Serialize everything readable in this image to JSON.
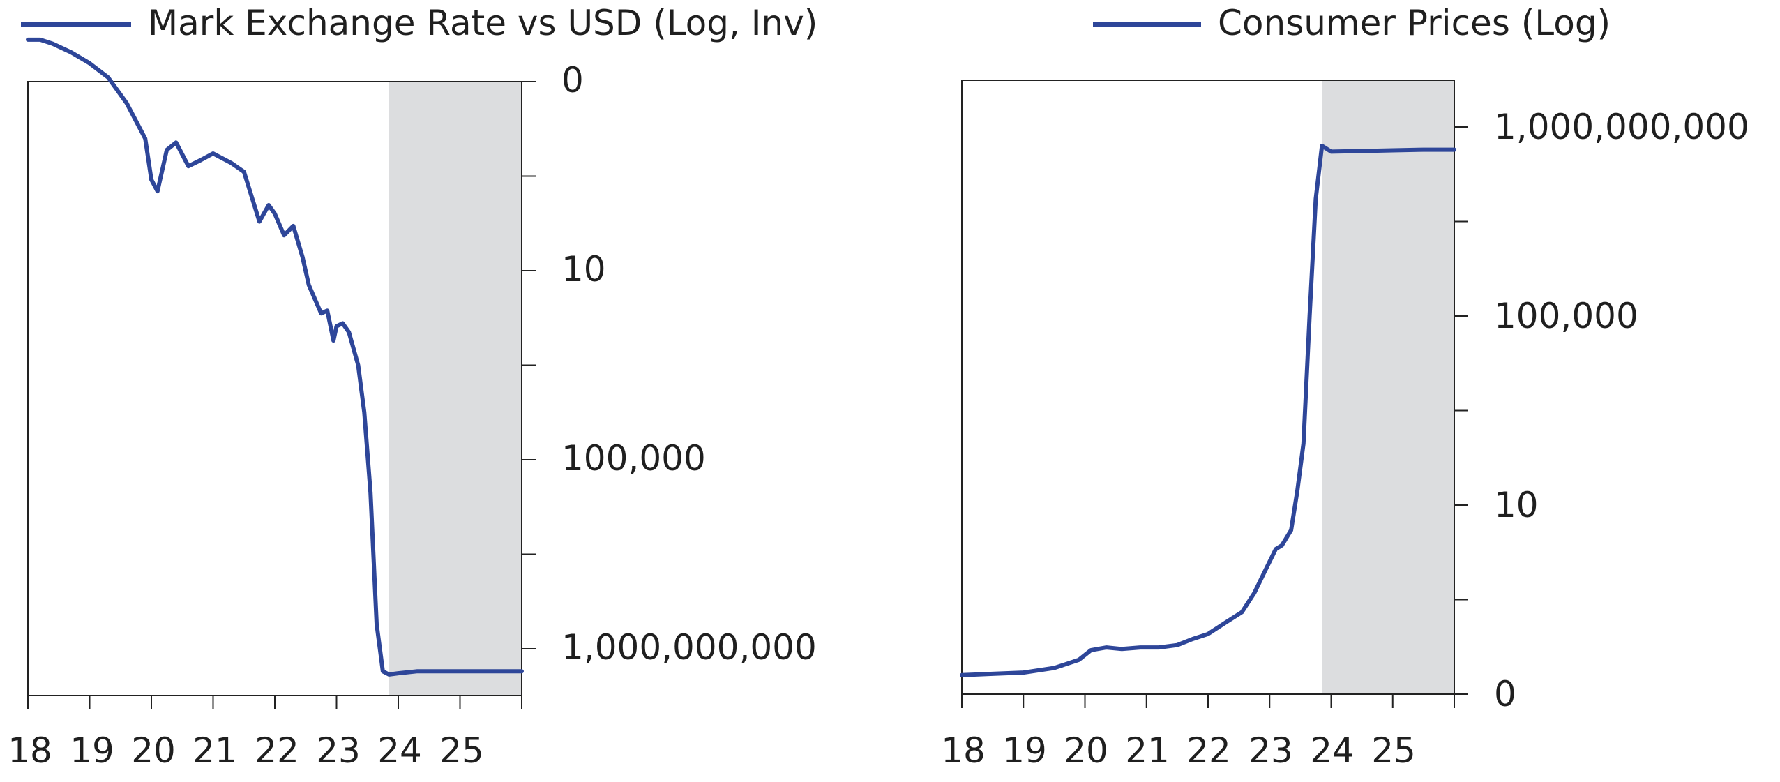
{
  "colors": {
    "line": "#2E4699",
    "shade": "#DCDDDF",
    "axis": "#222222",
    "text": "#1f1f1f"
  },
  "chart_data": [
    {
      "type": "line",
      "title": "",
      "legend": "Mark Exchange Rate vs USD (Log, Inv)",
      "legend_position": "top",
      "y_scale": "log-inverted",
      "y_axis_side": "right",
      "ytick_labels": [
        "0",
        "10",
        "100,000",
        "1,000,000,000"
      ],
      "ytick_values": [
        1,
        10,
        100000,
        1000000000
      ],
      "xtick_labels": [
        "18",
        "19",
        "20",
        "21",
        "22",
        "23",
        "24",
        "25"
      ],
      "xlim": [
        1918.0,
        1926.0
      ],
      "ylim": [
        0.5,
        30000000000
      ],
      "shaded_region": [
        1923.85,
        1926.0
      ],
      "grid": false,
      "series": [
        {
          "values": [
            [
              1918.0,
              0.6
            ],
            [
              1918.2,
              0.6
            ],
            [
              1918.4,
              0.63
            ],
            [
              1918.7,
              0.7
            ],
            [
              1919.0,
              0.8
            ],
            [
              1919.3,
              0.95
            ],
            [
              1919.6,
              1.3
            ],
            [
              1919.9,
              2.0
            ],
            [
              1920.0,
              3.3
            ],
            [
              1920.1,
              3.8
            ],
            [
              1920.25,
              2.3
            ],
            [
              1920.4,
              2.1
            ],
            [
              1920.6,
              2.8
            ],
            [
              1920.8,
              2.6
            ],
            [
              1921.0,
              2.4
            ],
            [
              1921.3,
              2.7
            ],
            [
              1921.5,
              3.0
            ],
            [
              1921.75,
              5.5
            ],
            [
              1921.9,
              4.5
            ],
            [
              1922.0,
              5.0
            ],
            [
              1922.15,
              6.5
            ],
            [
              1922.3,
              5.8
            ],
            [
              1922.45,
              8.5
            ],
            [
              1922.55,
              20
            ],
            [
              1922.65,
              40
            ],
            [
              1922.75,
              80
            ],
            [
              1922.85,
              70
            ],
            [
              1922.95,
              300
            ],
            [
              1923.0,
              150
            ],
            [
              1923.1,
              130
            ],
            [
              1923.2,
              200
            ],
            [
              1923.35,
              1000
            ],
            [
              1923.45,
              10000
            ],
            [
              1923.55,
              500000
            ],
            [
              1923.65,
              300000000
            ],
            [
              1923.75,
              3000000000
            ],
            [
              1923.85,
              3500000000
            ],
            [
              1924.0,
              3300000000
            ],
            [
              1924.3,
              3000000000
            ],
            [
              1925.0,
              3000000000
            ],
            [
              1926.0,
              3000000000
            ]
          ]
        }
      ]
    },
    {
      "type": "line",
      "title": "",
      "legend": "Consumer Prices (Log)",
      "legend_position": "top",
      "y_scale": "log",
      "y_axis_side": "right",
      "ytick_labels": [
        "0",
        "10",
        "100,000",
        "1,000,000,000"
      ],
      "ytick_values": [
        0.01,
        10,
        100000,
        1000000000
      ],
      "xtick_labels": [
        "18",
        "19",
        "20",
        "21",
        "22",
        "23",
        "24",
        "25"
      ],
      "xlim": [
        1918.0,
        1926.0
      ],
      "ylim": [
        0.01,
        30000000000
      ],
      "shaded_region": [
        1923.85,
        1926.0
      ],
      "grid": false,
      "series": [
        {
          "values": [
            [
              1918.0,
              0.02
            ],
            [
              1918.5,
              0.021
            ],
            [
              1919.0,
              0.022
            ],
            [
              1919.5,
              0.026
            ],
            [
              1919.9,
              0.035
            ],
            [
              1920.1,
              0.05
            ],
            [
              1920.35,
              0.055
            ],
            [
              1920.6,
              0.052
            ],
            [
              1920.9,
              0.055
            ],
            [
              1921.2,
              0.055
            ],
            [
              1921.5,
              0.06
            ],
            [
              1921.75,
              0.075
            ],
            [
              1922.0,
              0.09
            ],
            [
              1922.3,
              0.14
            ],
            [
              1922.55,
              0.2
            ],
            [
              1922.75,
              0.4
            ],
            [
              1922.9,
              0.8
            ],
            [
              1923.1,
              2.0
            ],
            [
              1923.2,
              2.3
            ],
            [
              1923.35,
              4.0
            ],
            [
              1923.45,
              20
            ],
            [
              1923.55,
              200
            ],
            [
              1923.65,
              100000
            ],
            [
              1923.75,
              30000000
            ],
            [
              1923.85,
              400000000
            ],
            [
              1924.0,
              300000000
            ],
            [
              1924.5,
              310000000
            ],
            [
              1925.0,
              320000000
            ],
            [
              1925.5,
              330000000
            ],
            [
              1926.0,
              330000000
            ]
          ]
        }
      ]
    }
  ]
}
